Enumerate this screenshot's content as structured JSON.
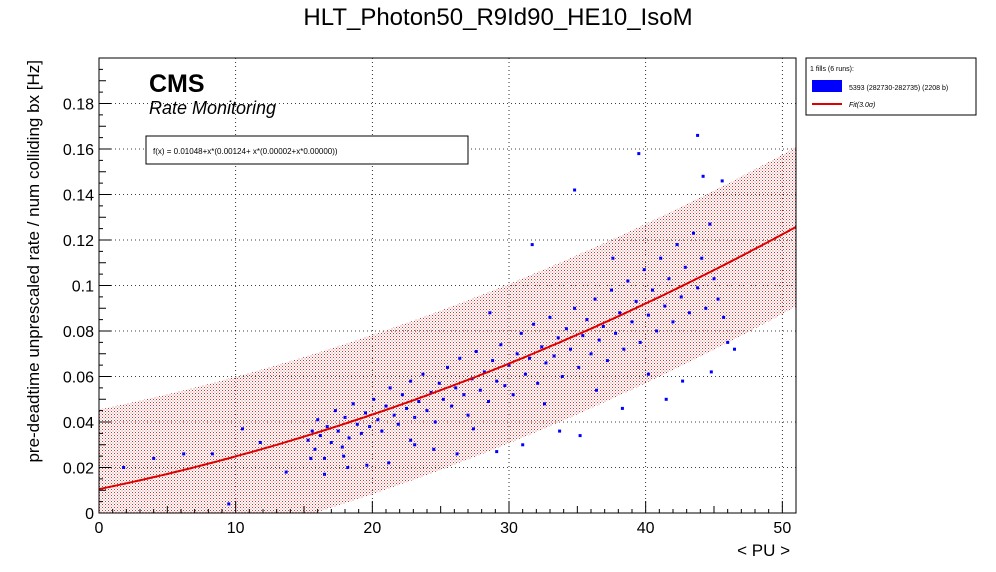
{
  "chart_data": {
    "type": "scatter",
    "title": "HLT_Photon50_R9Id90_HE10_IsoM",
    "xlabel": "< PU >",
    "ylabel": "pre-deadtime unprescaled rate / num colliding bx [Hz]",
    "xlim": [
      0,
      51
    ],
    "ylim": [
      0,
      0.2
    ],
    "x_ticks": [
      0,
      10,
      20,
      30,
      40,
      50
    ],
    "y_ticks": [
      0,
      0.02,
      0.04,
      0.06,
      0.08,
      0.1,
      0.12,
      0.14,
      0.16,
      0.18
    ],
    "y_tick_labels": [
      "0",
      "0.02",
      "0.04",
      "0.06",
      "0.08",
      "0.1",
      "0.12",
      "0.14",
      "0.16",
      "0.18"
    ],
    "grid": true,
    "logo": "CMS",
    "subtitle": "Rate Monitoring",
    "fit_formula": "f(x) = 0.01048+x*(0.00124+ x*(0.00002+x*0.00000))",
    "fit": {
      "coefficients": [
        0.01048,
        0.00124,
        2e-05,
        0.0
      ],
      "band_halfwidth": 0.035,
      "color": "#dd0000"
    },
    "legend": {
      "placement": "outside-top-right",
      "header": "1 fills (6 runs):",
      "entries": [
        {
          "label": "5393 (282730-282735) (2208 b)",
          "color": "#0000ff",
          "kind": "box"
        },
        {
          "label": "Fit(3.0σ)",
          "color": "#dd0000",
          "kind": "line"
        }
      ]
    },
    "series": [
      {
        "name": "5393 (282730-282735) (2208 b)",
        "color": "#0000ff",
        "points": [
          [
            1.8,
            0.02
          ],
          [
            4.0,
            0.024
          ],
          [
            6.2,
            0.026
          ],
          [
            8.3,
            0.026
          ],
          [
            9.5,
            0.004
          ],
          [
            10.5,
            0.037
          ],
          [
            11.8,
            0.031
          ],
          [
            13.7,
            0.018
          ],
          [
            15.3,
            0.032
          ],
          [
            15.6,
            0.036
          ],
          [
            15.8,
            0.028
          ],
          [
            16.0,
            0.041
          ],
          [
            16.2,
            0.034
          ],
          [
            16.5,
            0.024
          ],
          [
            16.7,
            0.038
          ],
          [
            17.0,
            0.031
          ],
          [
            17.3,
            0.045
          ],
          [
            17.5,
            0.036
          ],
          [
            17.8,
            0.029
          ],
          [
            18.0,
            0.042
          ],
          [
            18.3,
            0.033
          ],
          [
            18.6,
            0.048
          ],
          [
            18.9,
            0.039
          ],
          [
            19.2,
            0.035
          ],
          [
            19.5,
            0.044
          ],
          [
            19.8,
            0.038
          ],
          [
            20.1,
            0.05
          ],
          [
            20.4,
            0.041
          ],
          [
            20.7,
            0.036
          ],
          [
            21.0,
            0.047
          ],
          [
            21.3,
            0.055
          ],
          [
            21.6,
            0.043
          ],
          [
            21.9,
            0.039
          ],
          [
            22.2,
            0.052
          ],
          [
            22.5,
            0.046
          ],
          [
            22.8,
            0.058
          ],
          [
            23.1,
            0.042
          ],
          [
            23.4,
            0.049
          ],
          [
            23.7,
            0.061
          ],
          [
            24.0,
            0.045
          ],
          [
            24.3,
            0.053
          ],
          [
            24.6,
            0.04
          ],
          [
            24.9,
            0.057
          ],
          [
            25.2,
            0.05
          ],
          [
            25.5,
            0.064
          ],
          [
            25.8,
            0.047
          ],
          [
            26.1,
            0.055
          ],
          [
            26.4,
            0.068
          ],
          [
            26.7,
            0.052
          ],
          [
            27.0,
            0.043
          ],
          [
            27.3,
            0.059
          ],
          [
            27.6,
            0.071
          ],
          [
            27.9,
            0.054
          ],
          [
            28.2,
            0.062
          ],
          [
            28.5,
            0.049
          ],
          [
            28.8,
            0.067
          ],
          [
            29.1,
            0.058
          ],
          [
            29.4,
            0.074
          ],
          [
            29.7,
            0.056
          ],
          [
            30.0,
            0.065
          ],
          [
            30.3,
            0.052
          ],
          [
            30.6,
            0.07
          ],
          [
            30.9,
            0.079
          ],
          [
            31.2,
            0.061
          ],
          [
            31.5,
            0.068
          ],
          [
            31.8,
            0.083
          ],
          [
            32.1,
            0.057
          ],
          [
            32.4,
            0.073
          ],
          [
            32.7,
            0.066
          ],
          [
            33.0,
            0.086
          ],
          [
            33.3,
            0.069
          ],
          [
            33.6,
            0.077
          ],
          [
            33.9,
            0.06
          ],
          [
            34.2,
            0.081
          ],
          [
            34.5,
            0.072
          ],
          [
            34.8,
            0.09
          ],
          [
            35.1,
            0.064
          ],
          [
            35.4,
            0.078
          ],
          [
            35.7,
            0.085
          ],
          [
            36.0,
            0.07
          ],
          [
            36.3,
            0.094
          ],
          [
            36.6,
            0.076
          ],
          [
            36.9,
            0.082
          ],
          [
            37.2,
            0.067
          ],
          [
            37.5,
            0.098
          ],
          [
            37.8,
            0.079
          ],
          [
            38.1,
            0.088
          ],
          [
            38.4,
            0.072
          ],
          [
            38.7,
            0.102
          ],
          [
            39.0,
            0.084
          ],
          [
            39.3,
            0.093
          ],
          [
            39.6,
            0.075
          ],
          [
            39.9,
            0.107
          ],
          [
            40.2,
            0.087
          ],
          [
            40.5,
            0.098
          ],
          [
            40.8,
            0.08
          ],
          [
            41.1,
            0.112
          ],
          [
            41.4,
            0.091
          ],
          [
            41.7,
            0.103
          ],
          [
            42.0,
            0.084
          ],
          [
            42.3,
            0.118
          ],
          [
            42.6,
            0.095
          ],
          [
            42.9,
            0.108
          ],
          [
            43.2,
            0.088
          ],
          [
            43.5,
            0.123
          ],
          [
            43.8,
            0.099
          ],
          [
            44.1,
            0.112
          ],
          [
            44.4,
            0.09
          ],
          [
            44.7,
            0.127
          ],
          [
            45.0,
            0.103
          ],
          [
            45.3,
            0.094
          ],
          [
            45.7,
            0.086
          ],
          [
            43.8,
            0.166
          ],
          [
            44.2,
            0.148
          ],
          [
            45.6,
            0.146
          ],
          [
            44.8,
            0.062
          ],
          [
            46.0,
            0.075
          ],
          [
            46.5,
            0.072
          ],
          [
            34.8,
            0.142
          ],
          [
            39.5,
            0.158
          ],
          [
            37.6,
            0.112
          ],
          [
            31.7,
            0.118
          ],
          [
            28.6,
            0.088
          ],
          [
            22.8,
            0.032
          ],
          [
            33.7,
            0.036
          ],
          [
            35.2,
            0.034
          ],
          [
            16.5,
            0.017
          ],
          [
            18.2,
            0.02
          ],
          [
            19.6,
            0.021
          ],
          [
            24.5,
            0.028
          ],
          [
            26.2,
            0.026
          ],
          [
            29.1,
            0.027
          ],
          [
            31.0,
            0.03
          ],
          [
            38.3,
            0.046
          ],
          [
            41.5,
            0.05
          ],
          [
            42.7,
            0.058
          ],
          [
            40.2,
            0.061
          ],
          [
            36.4,
            0.054
          ],
          [
            32.6,
            0.048
          ],
          [
            27.4,
            0.037
          ],
          [
            23.1,
            0.03
          ],
          [
            21.2,
            0.022
          ],
          [
            17.9,
            0.025
          ],
          [
            15.5,
            0.024
          ]
        ]
      }
    ]
  }
}
